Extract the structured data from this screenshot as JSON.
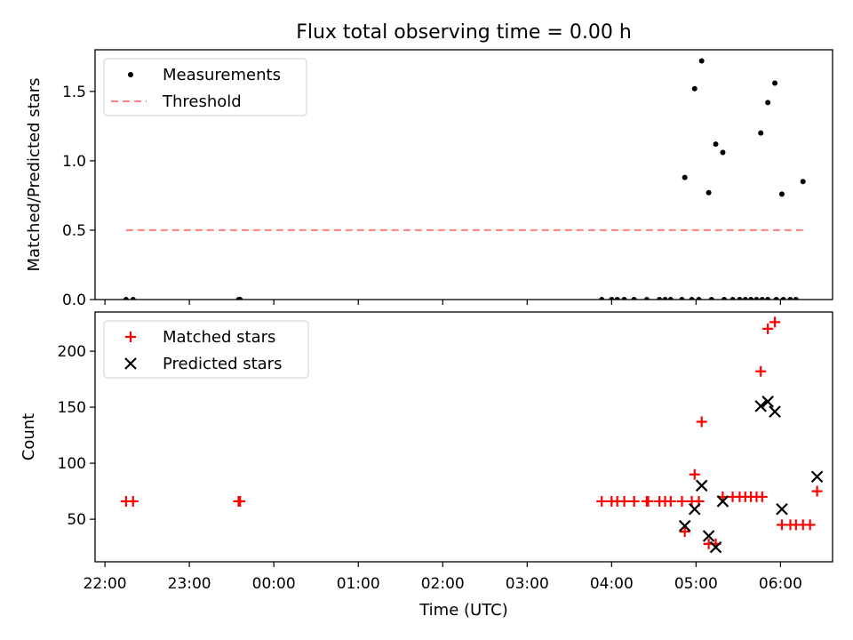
{
  "chart_data": [
    {
      "type": "scatter",
      "title": "Flux total observing time = 0.00 h",
      "ylabel": "Matched/Predicted stars",
      "xlabel": "",
      "x_ticks": [
        "22:00",
        "23:00",
        "00:00",
        "01:00",
        "02:00",
        "03:00",
        "04:00",
        "05:00",
        "06:00"
      ],
      "x_range": [
        "21:53",
        "06:37"
      ],
      "ylim": [
        0,
        1.8
      ],
      "y_ticks": [
        "0.0",
        "0.5",
        "1.0",
        "1.5"
      ],
      "legend_position": "upper left",
      "series": [
        {
          "name": "Measurements",
          "marker": "dot",
          "color": "#000000",
          "points": [
            [
              "22:15",
              0
            ],
            [
              "22:20",
              0
            ],
            [
              "23:35",
              0
            ],
            [
              "23:36",
              0
            ],
            [
              "03:53",
              0
            ],
            [
              "04:00",
              0
            ],
            [
              "04:04",
              0
            ],
            [
              "04:09",
              0
            ],
            [
              "04:16",
              0
            ],
            [
              "04:25",
              0
            ],
            [
              "04:34",
              0
            ],
            [
              "04:38",
              0
            ],
            [
              "04:42",
              0
            ],
            [
              "04:50",
              0
            ],
            [
              "04:57",
              0
            ],
            [
              "05:02",
              0
            ],
            [
              "05:11",
              0
            ],
            [
              "05:20",
              0
            ],
            [
              "05:26",
              0
            ],
            [
              "05:31",
              0
            ],
            [
              "05:35",
              0
            ],
            [
              "05:39",
              0
            ],
            [
              "05:43",
              0
            ],
            [
              "05:47",
              0
            ],
            [
              "05:51",
              0
            ],
            [
              "05:57",
              0
            ],
            [
              "06:02",
              0
            ],
            [
              "06:07",
              0
            ],
            [
              "06:11",
              0
            ],
            [
              "04:52",
              0.88
            ],
            [
              "04:59",
              1.52
            ],
            [
              "05:04",
              1.72
            ],
            [
              "05:09",
              0.77
            ],
            [
              "05:14",
              1.12
            ],
            [
              "05:19",
              1.06
            ],
            [
              "05:46",
              1.2
            ],
            [
              "05:51",
              1.42
            ],
            [
              "05:56",
              1.56
            ],
            [
              "06:01",
              0.76
            ],
            [
              "06:16",
              0.85
            ]
          ]
        },
        {
          "name": "Threshold",
          "marker": "dashed-line",
          "color": "#ff7f7f",
          "points": [
            [
              "22:15",
              0.5
            ],
            [
              "06:16",
              0.5
            ]
          ]
        }
      ]
    },
    {
      "type": "scatter",
      "title": "",
      "ylabel": "Count",
      "xlabel": "Time (UTC)",
      "x_ticks": [
        "22:00",
        "23:00",
        "00:00",
        "01:00",
        "02:00",
        "03:00",
        "04:00",
        "05:00",
        "06:00"
      ],
      "x_range": [
        "21:53",
        "06:37"
      ],
      "ylim": [
        12,
        235
      ],
      "y_ticks": [
        "50",
        "100",
        "150",
        "200"
      ],
      "legend_position": "upper left",
      "series": [
        {
          "name": "Matched stars",
          "marker": "plus",
          "color": "#ff0000",
          "points": [
            [
              "22:15",
              66
            ],
            [
              "22:20",
              66
            ],
            [
              "23:35",
              66
            ],
            [
              "23:36",
              66
            ],
            [
              "03:53",
              66
            ],
            [
              "04:00",
              66
            ],
            [
              "04:04",
              66
            ],
            [
              "04:09",
              66
            ],
            [
              "04:16",
              66
            ],
            [
              "04:25",
              66
            ],
            [
              "04:26",
              66
            ],
            [
              "04:34",
              66
            ],
            [
              "04:38",
              66
            ],
            [
              "04:42",
              66
            ],
            [
              "04:50",
              66
            ],
            [
              "04:57",
              66
            ],
            [
              "05:02",
              66
            ],
            [
              "04:52",
              39
            ],
            [
              "04:59",
              90
            ],
            [
              "05:04",
              137
            ],
            [
              "05:09",
              28
            ],
            [
              "05:14",
              28
            ],
            [
              "05:19",
              70
            ],
            [
              "05:26",
              70
            ],
            [
              "05:31",
              70
            ],
            [
              "05:35",
              70
            ],
            [
              "05:39",
              70
            ],
            [
              "05:43",
              70
            ],
            [
              "05:47",
              70
            ],
            [
              "05:46",
              182
            ],
            [
              "05:51",
              220
            ],
            [
              "05:56",
              226
            ],
            [
              "06:01",
              45
            ],
            [
              "06:07",
              45
            ],
            [
              "06:11",
              45
            ],
            [
              "06:16",
              45
            ],
            [
              "06:21",
              45
            ],
            [
              "06:26",
              75
            ]
          ]
        },
        {
          "name": "Predicted stars",
          "marker": "x",
          "color": "#000000",
          "points": [
            [
              "04:52",
              44
            ],
            [
              "04:59",
              59
            ],
            [
              "05:04",
              80
            ],
            [
              "05:09",
              35
            ],
            [
              "05:14",
              25
            ],
            [
              "05:19",
              66
            ],
            [
              "05:46",
              151
            ],
            [
              "05:51",
              155
            ],
            [
              "05:56",
              146
            ],
            [
              "06:01",
              59
            ],
            [
              "06:26",
              88
            ]
          ]
        }
      ]
    }
  ]
}
